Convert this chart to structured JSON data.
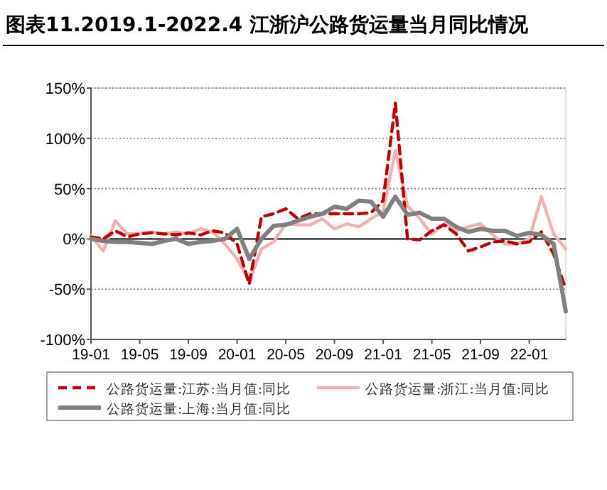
{
  "chart_data": {
    "type": "line",
    "title": "图表11.2019.1-2022.4 江浙沪公路货运量当月同比情况",
    "x": [
      "2019-01",
      "2019-02",
      "2019-03",
      "2019-04",
      "2019-05",
      "2019-06",
      "2019-07",
      "2019-08",
      "2019-09",
      "2019-10",
      "2019-11",
      "2019-12",
      "2020-01",
      "2020-02",
      "2020-03",
      "2020-04",
      "2020-05",
      "2020-06",
      "2020-07",
      "2020-08",
      "2020-09",
      "2020-10",
      "2020-11",
      "2020-12",
      "2021-01",
      "2021-02",
      "2021-03",
      "2021-04",
      "2021-05",
      "2021-06",
      "2021-07",
      "2021-08",
      "2021-09",
      "2021-10",
      "2021-11",
      "2021-12",
      "2022-01",
      "2022-02",
      "2022-03",
      "2022-04"
    ],
    "series": [
      {
        "name": "公路货运量:江苏:当月值:同比",
        "color": "#c00000",
        "line_style": "dashed",
        "values": [
          2,
          0,
          8,
          2,
          5,
          6,
          5,
          4,
          6,
          4,
          8,
          6,
          -5,
          -45,
          22,
          25,
          30,
          20,
          25,
          25,
          25,
          25,
          25,
          26,
          38,
          135,
          0,
          -1,
          8,
          14,
          5,
          -12,
          -8,
          -3,
          -2,
          -5,
          -3,
          7,
          -15,
          -50
        ]
      },
      {
        "name": "公路货运量:浙江:当月值:同比",
        "color": "#f4b0b0",
        "line_style": "solid",
        "values": [
          3,
          -12,
          18,
          5,
          5,
          7,
          5,
          7,
          5,
          10,
          7,
          -5,
          -20,
          -42,
          -10,
          -3,
          15,
          14,
          14,
          20,
          10,
          15,
          12,
          20,
          27,
          88,
          33,
          20,
          5,
          15,
          8,
          12,
          15,
          4,
          -5,
          -5,
          0,
          42,
          5,
          -10
        ]
      },
      {
        "name": "公路货运量:上海:当月值:同比",
        "color": "#808080",
        "line_style": "solid",
        "values": [
          0,
          -2,
          -3,
          -3,
          -4,
          -5,
          -2,
          0,
          -5,
          -3,
          -2,
          0,
          10,
          -20,
          0,
          13,
          14,
          18,
          22,
          25,
          32,
          30,
          38,
          37,
          22,
          42,
          24,
          26,
          20,
          20,
          12,
          7,
          10,
          8,
          8,
          3,
          6,
          4,
          -5,
          -72
        ]
      }
    ],
    "xlim": [
      "2019-01",
      "2022-04"
    ],
    "xticks": [
      {
        "value": "2019-01",
        "label": "19-01"
      },
      {
        "value": "2019-05",
        "label": "19-05"
      },
      {
        "value": "2019-09",
        "label": "19-09"
      },
      {
        "value": "2020-01",
        "label": "20-01"
      },
      {
        "value": "2020-05",
        "label": "20-05"
      },
      {
        "value": "2020-09",
        "label": "20-09"
      },
      {
        "value": "2021-01",
        "label": "21-01"
      },
      {
        "value": "2021-05",
        "label": "21-05"
      },
      {
        "value": "2021-09",
        "label": "21-09"
      },
      {
        "value": "2022-01",
        "label": "22-01"
      }
    ],
    "ylim": [
      -100,
      150
    ],
    "yticks": [
      {
        "value": -100,
        "label": "-100%"
      },
      {
        "value": -50,
        "label": "-50%"
      },
      {
        "value": 0,
        "label": "0%"
      },
      {
        "value": 50,
        "label": "50%"
      },
      {
        "value": 100,
        "label": "100%"
      },
      {
        "value": 150,
        "label": "150%"
      }
    ],
    "grid": "y",
    "legend": "bottom",
    "marker": "none"
  }
}
